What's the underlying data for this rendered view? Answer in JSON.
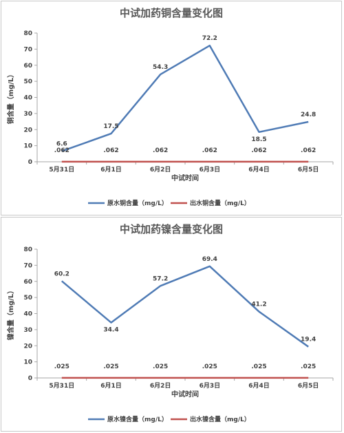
{
  "chart_data": [
    {
      "type": "line",
      "title": "中试加药铜含量变化图",
      "xlabel": "中试时间",
      "ylabel": "铜含量（mg/L）",
      "categories": [
        "5月31日",
        "6月1日",
        "6月2日",
        "6月3日",
        "6月4日",
        "6月5日"
      ],
      "ylim": [
        0,
        80
      ],
      "yticks": [
        0,
        10,
        20,
        30,
        40,
        50,
        60,
        70,
        80
      ],
      "grid": false,
      "legend_position": "bottom",
      "series": [
        {
          "name": "原水铜含量（mg/L）",
          "color": "#4f7bb5",
          "values": [
            6.6,
            17.5,
            54.3,
            72.2,
            18.5,
            24.8
          ]
        },
        {
          "name": "出水铜含量（mg/L）",
          "color": "#c0504d",
          "values": [
            0.062,
            0.062,
            0.062,
            0.062,
            0.062,
            0.062
          ]
        }
      ]
    },
    {
      "type": "line",
      "title": "中试加药镍含量变化图",
      "xlabel": "中试时间",
      "ylabel": "镍含量（mg/L）",
      "categories": [
        "5月31日",
        "6月1日",
        "6月2日",
        "6月3日",
        "6月4日",
        "6月5日"
      ],
      "ylim": [
        0,
        80
      ],
      "yticks": [
        0,
        10,
        20,
        30,
        40,
        50,
        60,
        70,
        80
      ],
      "grid": false,
      "legend_position": "bottom",
      "series": [
        {
          "name": "原水镍含量（mg/L）",
          "color": "#4f7bb5",
          "values": [
            60.2,
            34.4,
            57.2,
            69.4,
            41.2,
            19.4
          ]
        },
        {
          "name": "出水镍含量（mg/L）",
          "color": "#c0504d",
          "values": [
            0.025,
            0.025,
            0.025,
            0.025,
            0.025,
            0.025
          ]
        }
      ]
    }
  ]
}
